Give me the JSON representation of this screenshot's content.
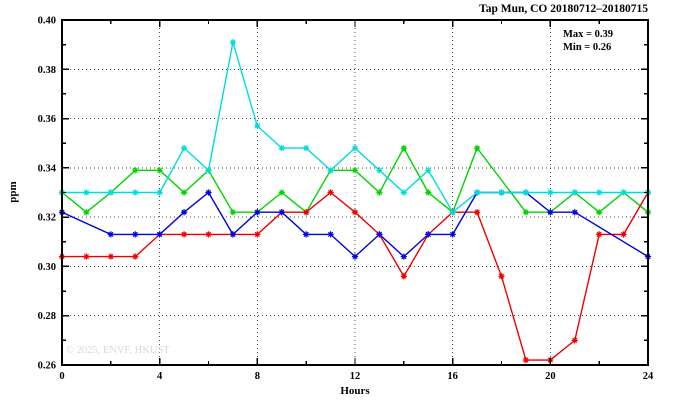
{
  "title": "Tap Mun, CO 20180712–20180715",
  "annotation": {
    "max_label": "Max = 0.39",
    "min_label": "Min = 0.26"
  },
  "watermark": "© 2025, ENVF, HKUST",
  "axis": {
    "xlabel": "Hours",
    "ylabel": "ppm"
  },
  "chart_data": {
    "type": "line",
    "title": "Tap Mun, CO 20180712–20180715",
    "xlabel": "Hours",
    "ylabel": "ppm",
    "xlim": [
      0,
      24
    ],
    "ylim": [
      0.26,
      0.4
    ],
    "grid": "dotted",
    "legend_position": "none",
    "annotations": [
      "Max = 0.39",
      "Min = 0.26"
    ],
    "x_major_ticks": [
      0,
      4,
      8,
      12,
      16,
      20,
      24
    ],
    "x_tick_labels": [
      "0",
      "4",
      "8",
      "12",
      "16",
      "20",
      "24"
    ],
    "x_minor_ticks": [
      2,
      6,
      10,
      14,
      18,
      22
    ],
    "y_major_ticks": [
      0.26,
      0.28,
      0.3,
      0.32,
      0.34,
      0.36,
      0.38,
      0.4
    ],
    "y_tick_labels": [
      "0.26",
      "0.28",
      "0.30",
      "0.32",
      "0.34",
      "0.36",
      "0.38",
      "0.40"
    ],
    "y_minor_ticks": [
      0.27,
      0.29,
      0.31,
      0.33,
      0.35,
      0.37,
      0.39
    ],
    "x_gridlines": [
      4,
      8,
      12,
      16,
      20
    ],
    "y_gridlines": [
      0.28,
      0.3,
      0.32,
      0.34,
      0.36,
      0.38
    ],
    "x": [
      0,
      1,
      2,
      3,
      4,
      5,
      6,
      7,
      8,
      9,
      10,
      11,
      12,
      13,
      14,
      15,
      16,
      17,
      18,
      19,
      20,
      21,
      22,
      23,
      24
    ],
    "series": [
      {
        "name": "series-green",
        "color": "#00d400",
        "values": [
          0.33,
          0.322,
          0.33,
          0.339,
          0.339,
          0.33,
          0.339,
          0.322,
          0.322,
          0.33,
          0.322,
          0.339,
          0.339,
          0.33,
          0.348,
          0.33,
          0.322,
          0.348,
          null,
          0.322,
          0.322,
          0.33,
          0.322,
          0.33,
          0.322
        ]
      },
      {
        "name": "series-red",
        "color": "#ee0000",
        "values": [
          0.304,
          0.304,
          0.304,
          0.304,
          0.313,
          0.313,
          0.313,
          0.313,
          0.313,
          0.322,
          0.322,
          0.33,
          0.322,
          0.313,
          0.296,
          0.313,
          0.322,
          0.322,
          0.296,
          0.262,
          0.262,
          0.27,
          0.313,
          0.313,
          0.33
        ]
      },
      {
        "name": "series-blue",
        "color": "#0000e0",
        "values": [
          0.322,
          null,
          0.313,
          0.313,
          0.313,
          0.322,
          0.33,
          0.313,
          0.322,
          0.322,
          0.313,
          0.313,
          0.304,
          0.313,
          0.304,
          0.313,
          0.313,
          0.33,
          0.33,
          0.33,
          0.322,
          0.322,
          null,
          null,
          0.304
        ]
      },
      {
        "name": "series-cyan",
        "color": "#00dcdc",
        "values": [
          0.33,
          0.33,
          0.33,
          0.33,
          0.33,
          0.348,
          0.339,
          0.391,
          0.357,
          0.348,
          0.348,
          0.339,
          0.348,
          0.339,
          0.33,
          0.339,
          0.322,
          0.33,
          0.33,
          0.33,
          0.33,
          0.33,
          0.33,
          0.33,
          0.33
        ]
      }
    ]
  },
  "style": {
    "axis_color": "#000000",
    "grid_color": "#4a4a4a",
    "background": "#ffffff"
  }
}
